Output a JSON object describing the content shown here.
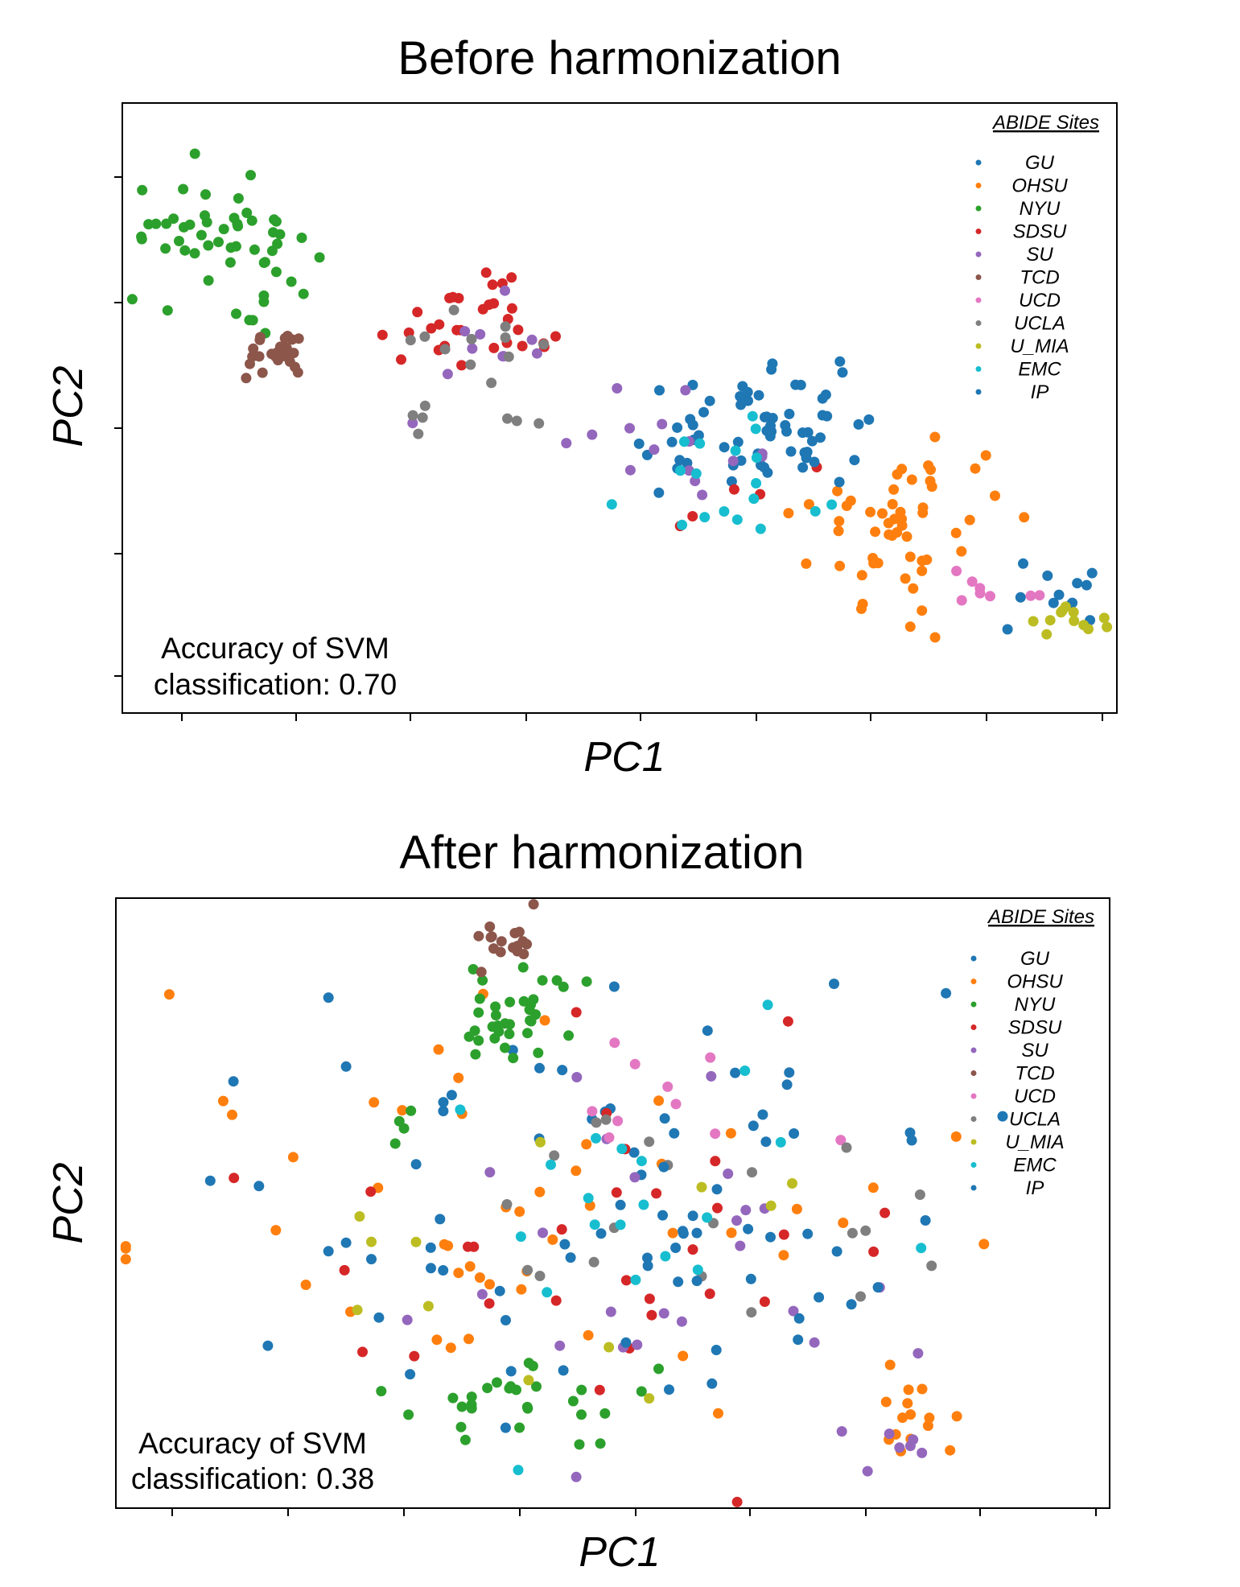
{
  "chart_data": [
    {
      "type": "scatter",
      "title": "Before harmonization",
      "xlabel": "PC1",
      "ylabel": "PC2",
      "legend_title": "ABIDE Sites",
      "legend_position": "top-right",
      "annotation": [
        "Accuracy of SVM",
        "classification: 0.70"
      ],
      "xlim": [
        0,
        100
      ],
      "ylim": [
        0,
        100
      ],
      "grid": false,
      "series": [
        {
          "name": "GU",
          "color": "#1f77b4",
          "clusters": [
            {
              "cx": 62,
              "cy": 45,
              "sx": 7,
              "sy": 5,
              "n": 45
            },
            {
              "cx": 94,
              "cy": 22,
              "sx": 2.5,
              "sy": 3,
              "n": 12
            }
          ]
        },
        {
          "name": "OHSU",
          "color": "#ff7f0e",
          "clusters": [
            {
              "cx": 79,
              "cy": 31,
              "sx": 5,
              "sy": 7,
              "n": 55
            }
          ]
        },
        {
          "name": "NYU",
          "color": "#2ca02c",
          "clusters": [
            {
              "cx": 10,
              "cy": 78,
              "sx": 5,
              "sy": 5,
              "n": 55
            }
          ]
        },
        {
          "name": "SDSU",
          "color": "#d62728",
          "clusters": [
            {
              "cx": 35,
              "cy": 62,
              "sx": 4,
              "sy": 4,
              "n": 30
            },
            {
              "cx": 61,
              "cy": 38,
              "sx": 4,
              "sy": 4,
              "n": 5
            }
          ]
        },
        {
          "name": "SU",
          "color": "#9467bd",
          "clusters": [
            {
              "cx": 37,
              "cy": 59,
              "sx": 4,
              "sy": 4,
              "n": 10
            },
            {
              "cx": 56,
              "cy": 42,
              "sx": 8,
              "sy": 5,
              "n": 15
            }
          ]
        },
        {
          "name": "TCD",
          "color": "#8c564b",
          "clusters": [
            {
              "cx": 15,
              "cy": 59,
              "sx": 2,
              "sy": 2,
              "n": 25
            }
          ]
        },
        {
          "name": "UCD",
          "color": "#e377c2",
          "clusters": [
            {
              "cx": 88,
              "cy": 19,
              "sx": 3,
              "sy": 2,
              "n": 8
            }
          ]
        },
        {
          "name": "UCLA",
          "color": "#7f7f7f",
          "clusters": [
            {
              "cx": 36,
              "cy": 55,
              "sx": 4,
              "sy": 5,
              "n": 18
            }
          ]
        },
        {
          "name": "U_MIA",
          "color": "#bcbd22",
          "clusters": [
            {
              "cx": 95,
              "cy": 15,
              "sx": 2,
              "sy": 2,
              "n": 12
            }
          ]
        },
        {
          "name": "EMC",
          "color": "#17becf",
          "clusters": [
            {
              "cx": 63,
              "cy": 38,
              "sx": 8,
              "sy": 6,
              "n": 18
            }
          ]
        },
        {
          "name": "IP",
          "color": "#1f77b4",
          "clusters": [
            {
              "cx": 70,
              "cy": 50,
              "sx": 10,
              "sy": 6,
              "n": 20
            }
          ]
        }
      ]
    },
    {
      "type": "scatter",
      "title": "After harmonization",
      "xlabel": "PC1",
      "ylabel": "PC2",
      "legend_title": "ABIDE Sites",
      "legend_position": "top-right",
      "annotation": [
        "Accuracy of SVM",
        "classification: 0.38"
      ],
      "xlim": [
        0,
        100
      ],
      "ylim": [
        0,
        100
      ],
      "grid": false,
      "series": [
        {
          "name": "GU",
          "color": "#1f77b4",
          "clusters": [
            {
              "cx": 50,
              "cy": 55,
              "sx": 17,
              "sy": 18,
              "n": 55
            }
          ]
        },
        {
          "name": "OHSU",
          "color": "#ff7f0e",
          "clusters": [
            {
              "cx": 40,
              "cy": 50,
              "sx": 20,
              "sy": 15,
              "n": 50
            },
            {
              "cx": 80,
              "cy": 14,
              "sx": 2,
              "sy": 3,
              "n": 15
            }
          ]
        },
        {
          "name": "NYU",
          "color": "#2ca02c",
          "clusters": [
            {
              "cx": 40,
              "cy": 81,
              "sx": 3,
              "sy": 4,
              "n": 35
            },
            {
              "cx": 41,
              "cy": 17,
              "sx": 7,
              "sy": 4,
              "n": 28
            },
            {
              "cx": 29,
              "cy": 62,
              "sx": 1,
              "sy": 2,
              "n": 4
            }
          ]
        },
        {
          "name": "SDSU",
          "color": "#d62728",
          "clusters": [
            {
              "cx": 50,
              "cy": 48,
              "sx": 15,
              "sy": 16,
              "n": 30
            }
          ]
        },
        {
          "name": "SU",
          "color": "#9467bd",
          "clusters": [
            {
              "cx": 52,
              "cy": 40,
              "sx": 15,
              "sy": 18,
              "n": 25
            },
            {
              "cx": 78,
              "cy": 10,
              "sx": 2,
              "sy": 2,
              "n": 6
            }
          ]
        },
        {
          "name": "TCD",
          "color": "#8c564b",
          "clusters": [
            {
              "cx": 39,
              "cy": 94,
              "sx": 1.5,
              "sy": 2.5,
              "n": 18
            }
          ]
        },
        {
          "name": "UCD",
          "color": "#e377c2",
          "clusters": [
            {
              "cx": 55,
              "cy": 65,
              "sx": 14,
              "sy": 10,
              "n": 10
            }
          ]
        },
        {
          "name": "UCLA",
          "color": "#7f7f7f",
          "clusters": [
            {
              "cx": 58,
              "cy": 52,
              "sx": 12,
              "sy": 12,
              "n": 20
            }
          ]
        },
        {
          "name": "U_MIA",
          "color": "#bcbd22",
          "clusters": [
            {
              "cx": 40,
              "cy": 40,
              "sx": 16,
              "sy": 18,
              "n": 12
            }
          ]
        },
        {
          "name": "EMC",
          "color": "#17becf",
          "clusters": [
            {
              "cx": 55,
              "cy": 48,
              "sx": 12,
              "sy": 15,
              "n": 20
            }
          ]
        },
        {
          "name": "IP",
          "color": "#1f77b4",
          "clusters": [
            {
              "cx": 58,
              "cy": 44,
              "sx": 16,
              "sy": 15,
              "n": 25
            }
          ]
        }
      ]
    }
  ]
}
